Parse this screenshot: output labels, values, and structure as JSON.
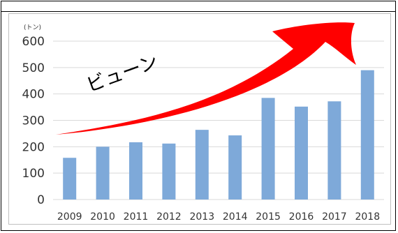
{
  "chart_data": {
    "type": "bar",
    "categories": [
      "2009",
      "2010",
      "2011",
      "2012",
      "2013",
      "2014",
      "2015",
      "2016",
      "2017",
      "2018"
    ],
    "values": [
      158,
      200,
      217,
      212,
      264,
      243,
      385,
      352,
      372,
      490
    ],
    "ylim": [
      0,
      600
    ],
    "yticks": [
      0,
      100,
      200,
      300,
      400,
      500,
      600
    ],
    "unit_label": "(トン)",
    "annotation": "ビューン",
    "grid": true,
    "bar_color": "#7ea9d9",
    "arrow_color": "#ff0000"
  }
}
